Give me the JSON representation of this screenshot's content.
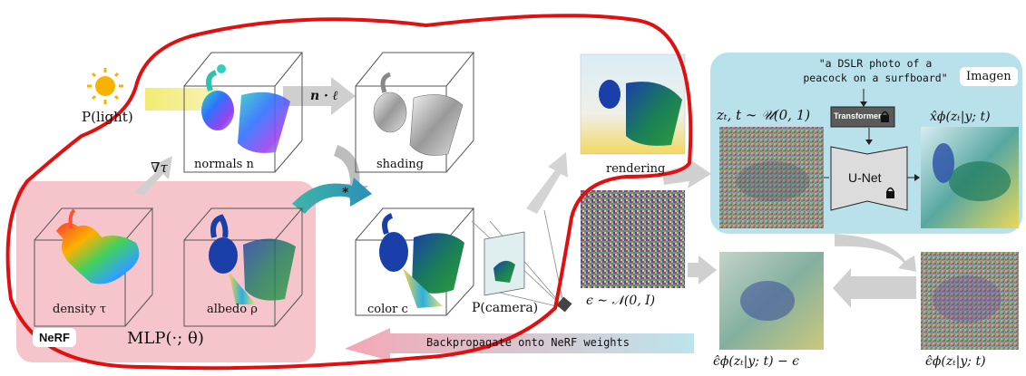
{
  "colors": {
    "nerf_region": "#f5c5cb",
    "imagen_region": "#b9e1ec",
    "outline": "#e01010",
    "gray_arrow": "#cfcfcf",
    "sun": "#f6b400",
    "light_beam": "#f1ea6a",
    "teal_arrow": "#2aa6a6"
  },
  "labels": {
    "nerf": "NeRF",
    "imagen": "Imagen",
    "mlp": "MLP(·; θ)",
    "light": "P(light)",
    "grad": "∇τ",
    "n_dot_l": "n · ℓ",
    "normals": "normals n",
    "shading": "shading",
    "density": "density τ",
    "albedo": "albedo ρ",
    "color": "color c",
    "camera": "P(camera)",
    "rendering": "rendering",
    "noise": "ϵ ∼ 𝒩(0, I)",
    "zt": "zₜ, t ∼ 𝒰(0, 1)",
    "xhat": "x̂ϕ(zₜ|y; t)",
    "eps_minus": "ϵ̂ϕ(zₜ|y; t) − ϵ",
    "eps_hat": "ϵ̂ϕ(zₜ|y; t)",
    "prompt": "\"a DSLR photo of a peacock on a surfboard\"",
    "transformer": "Transformer",
    "unet": "U-Net",
    "backprop": "Backpropagate onto NeRF weights"
  }
}
